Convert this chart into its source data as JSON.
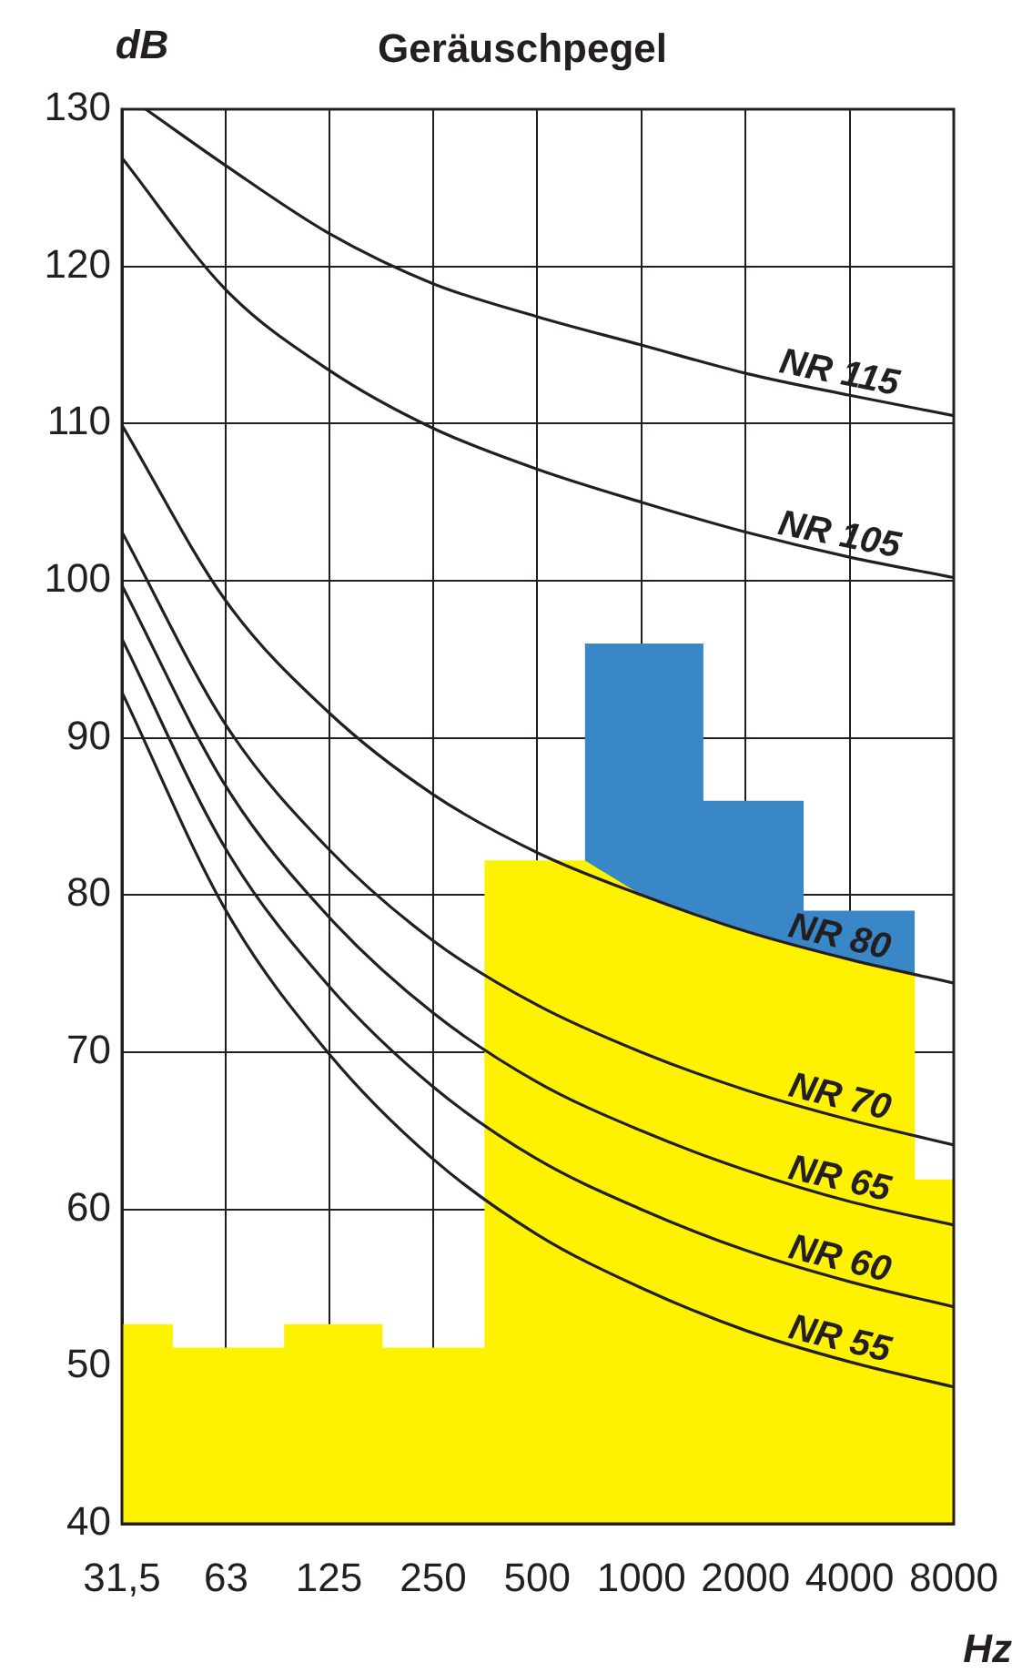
{
  "chart_data": {
    "type": "line",
    "title": "Geräuschpegel",
    "ylabel": "dB",
    "xlabel": "Hz",
    "log": "x",
    "grid": true,
    "xlim": [
      31.5,
      8000
    ],
    "ylim": [
      40,
      130
    ],
    "xticks": [
      {
        "value": 31.5,
        "label": "31,5"
      },
      63,
      125,
      250,
      500,
      1000,
      2000,
      4000,
      8000
    ],
    "yticks": [
      40,
      50,
      60,
      70,
      80,
      90,
      100,
      110,
      120,
      130
    ],
    "x": [
      31.5,
      63,
      125,
      250,
      500,
      1000,
      2000,
      4000,
      8000
    ],
    "series": [
      {
        "type": "area",
        "color": "#3a87c8",
        "x": [
          686,
          686,
          1511,
          1511,
          2945,
          2945,
          6176
        ],
        "values": [
          82.2,
          96,
          96,
          86,
          86,
          79,
          79
        ]
      },
      {
        "type": "area",
        "color": "#fff200",
        "x": [
          31.5,
          44.2,
          44.2,
          92.7,
          92.7,
          178.6,
          178.6,
          352,
          352,
          686,
          1000,
          2000,
          4000,
          6176,
          6176,
          8000
        ],
        "values": [
          52.7,
          52.7,
          51.2,
          51.2,
          52.7,
          52.7,
          51.2,
          51.2,
          82.2,
          82.2,
          80,
          77.7,
          75.9,
          75.0,
          61.9,
          61.9
        ]
      },
      {
        "type": "line",
        "name": "NR 115",
        "color": "#231f20",
        "x": [
          36.9,
          63,
          125,
          250,
          500,
          1000,
          2000,
          4000,
          8000
        ],
        "values": [
          130,
          126.4,
          122.1,
          118.9,
          116.8,
          115,
          113.2,
          111.8,
          110.5
        ]
      },
      {
        "type": "line",
        "name": "NR 105",
        "color": "#231f20",
        "values": [
          126.9,
          118.5,
          113.4,
          109.7,
          107.1,
          105,
          103.1,
          101.5,
          100.2
        ]
      },
      {
        "type": "line",
        "name": "NR 80",
        "color": "#231f20",
        "values": [
          109.9,
          98.7,
          91.6,
          86.4,
          82.7,
          80,
          77.7,
          75.9,
          74.4
        ]
      },
      {
        "type": "line",
        "name": "NR 70",
        "color": "#231f20",
        "values": [
          103.1,
          90.8,
          82.9,
          77.1,
          73.0,
          70,
          67.6,
          65.7,
          64.1
        ]
      },
      {
        "type": "line",
        "name": "NR 65",
        "color": "#231f20",
        "values": [
          99.7,
          86.9,
          78.6,
          72.5,
          68.1,
          65,
          62.5,
          60.5,
          59.0
        ]
      },
      {
        "type": "line",
        "name": "NR 60",
        "color": "#231f20",
        "values": [
          96.3,
          82.9,
          74.2,
          67.8,
          63.2,
          60,
          57.4,
          55.4,
          53.8
        ]
      },
      {
        "type": "line",
        "name": "NR 55",
        "color": "#231f20",
        "values": [
          92.9,
          79.0,
          69.9,
          63.2,
          58.4,
          55,
          52.3,
          50.3,
          48.7
        ]
      }
    ]
  }
}
